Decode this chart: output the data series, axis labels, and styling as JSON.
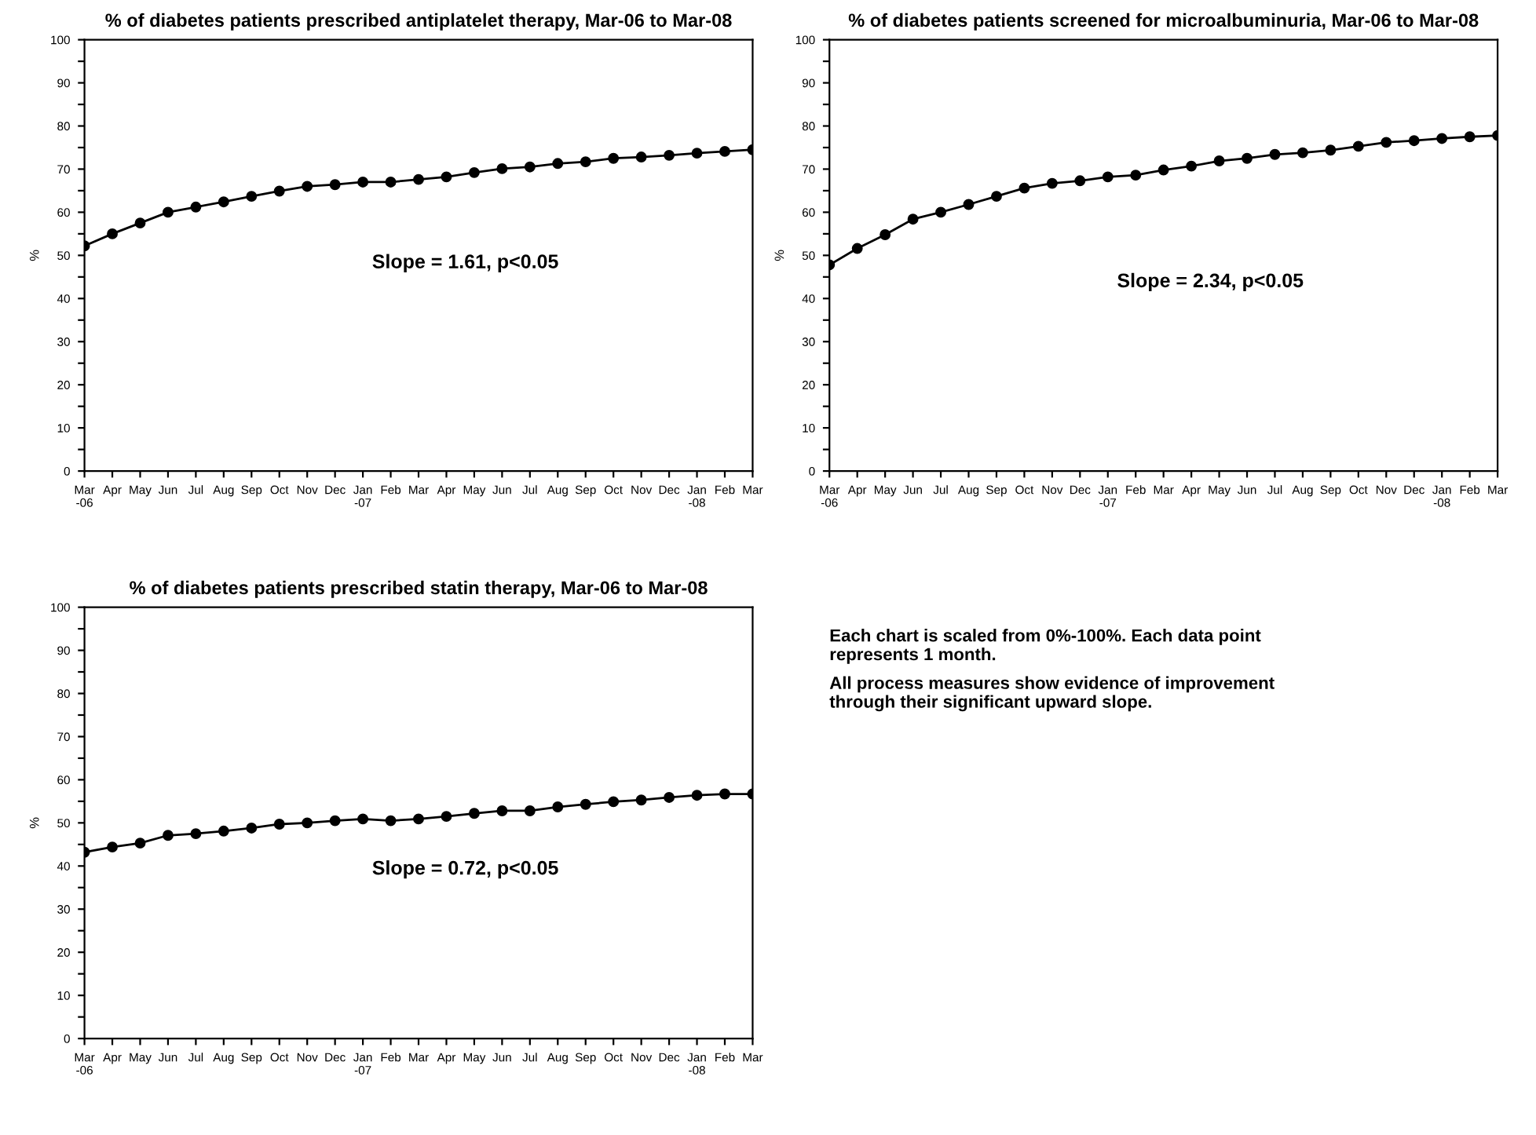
{
  "chart_data": [
    {
      "type": "line",
      "title": "% of diabetes patients prescribed antiplatelet therapy, Mar-06 to Mar-08",
      "ylabel": "%",
      "categories": [
        "Mar\n-06",
        "Apr",
        "May",
        "Jun",
        "Jul",
        "Aug",
        "Sep",
        "Oct",
        "Nov",
        "Dec",
        "Jan\n-07",
        "Feb",
        "Mar",
        "Apr",
        "May",
        "Jun",
        "Jul",
        "Aug",
        "Sep",
        "Oct",
        "Nov",
        "Dec",
        "Jan\n-08",
        "Feb",
        "Mar"
      ],
      "series": [
        {
          "color": "#000000",
          "values": [
            52.2,
            55,
            57.5,
            60,
            61.2,
            62.4,
            63.7,
            64.9,
            66,
            66.4,
            67,
            67,
            67.6,
            68.2,
            69.2,
            70.1,
            70.5,
            71.3,
            71.7,
            72.5,
            72.8,
            73.2,
            73.7,
            74.1,
            74.5
          ]
        }
      ],
      "ylim": [
        0,
        100
      ],
      "yticks": [
        0,
        {
          "value": 5,
          "label": null
        },
        10,
        {
          "value": 15,
          "label": null
        },
        20,
        {
          "value": 25,
          "label": null
        },
        30,
        {
          "value": 35,
          "label": null
        },
        40,
        {
          "value": 45,
          "label": null
        },
        50,
        {
          "value": 55,
          "label": null
        },
        60,
        {
          "value": 65,
          "label": null
        },
        70,
        {
          "value": 75,
          "label": null
        },
        80,
        {
          "value": 85,
          "label": null
        },
        90,
        {
          "value": 95,
          "label": null
        },
        100
      ],
      "marker": "circle",
      "line_style": "solid",
      "grid": false,
      "legend": false,
      "annotations": [
        "Slope = 1.61, p<0.05"
      ]
    },
    {
      "type": "line",
      "title": "% of diabetes patients screened for microalbuminuria, Mar-06 to Mar-08",
      "ylabel": "%",
      "categories": [
        "Mar\n-06",
        "Apr",
        "May",
        "Jun",
        "Jul",
        "Aug",
        "Sep",
        "Oct",
        "Nov",
        "Dec",
        "Jan\n-07",
        "Feb",
        "Mar",
        "Apr",
        "May",
        "Jun",
        "Jul",
        "Aug",
        "Sep",
        "Oct",
        "Nov",
        "Dec",
        "Jan\n-08",
        "Feb",
        "Mar"
      ],
      "series": [
        {
          "color": "#000000",
          "values": [
            47.8,
            51.6,
            54.8,
            58.4,
            60,
            61.8,
            63.7,
            65.6,
            66.7,
            67.3,
            68.2,
            68.6,
            69.8,
            70.7,
            71.9,
            72.5,
            73.4,
            73.8,
            74.4,
            75.3,
            76.2,
            76.6,
            77.1,
            77.5,
            77.8
          ]
        }
      ],
      "ylim": [
        0,
        100
      ],
      "yticks": [
        0,
        {
          "value": 5,
          "label": null
        },
        10,
        {
          "value": 15,
          "label": null
        },
        20,
        {
          "value": 25,
          "label": null
        },
        30,
        {
          "value": 35,
          "label": null
        },
        40,
        {
          "value": 45,
          "label": null
        },
        50,
        {
          "value": 55,
          "label": null
        },
        60,
        {
          "value": 65,
          "label": null
        },
        70,
        {
          "value": 75,
          "label": null
        },
        80,
        {
          "value": 85,
          "label": null
        },
        90,
        {
          "value": 95,
          "label": null
        },
        100
      ],
      "marker": "circle",
      "line_style": "solid",
      "grid": false,
      "legend": false,
      "annotations": [
        "Slope = 2.34, p<0.05"
      ]
    },
    {
      "type": "line",
      "title": "% of diabetes patients prescribed statin therapy, Mar-06 to Mar-08",
      "ylabel": "%",
      "categories": [
        "Mar\n-06",
        "Apr",
        "May",
        "Jun",
        "Jul",
        "Aug",
        "Sep",
        "Oct",
        "Nov",
        "Dec",
        "Jan\n-07",
        "Feb",
        "Mar",
        "Apr",
        "May",
        "Jun",
        "Jul",
        "Aug",
        "Sep",
        "Oct",
        "Nov",
        "Dec",
        "Jan\n-08",
        "Feb",
        "Mar"
      ],
      "series": [
        {
          "color": "#000000",
          "values": [
            43.2,
            44.4,
            45.3,
            47.1,
            47.5,
            48.1,
            48.8,
            49.7,
            50,
            50.5,
            50.9,
            50.5,
            50.9,
            51.5,
            52.2,
            52.8,
            52.8,
            53.7,
            54.3,
            54.9,
            55.3,
            55.9,
            56.4,
            56.7,
            56.7
          ]
        }
      ],
      "ylim": [
        0,
        100
      ],
      "yticks": [
        0,
        {
          "value": 5,
          "label": null
        },
        10,
        {
          "value": 15,
          "label": null
        },
        20,
        {
          "value": 25,
          "label": null
        },
        30,
        {
          "value": 35,
          "label": null
        },
        40,
        {
          "value": 45,
          "label": null
        },
        50,
        {
          "value": 55,
          "label": null
        },
        60,
        {
          "value": 65,
          "label": null
        },
        70,
        {
          "value": 75,
          "label": null
        },
        80,
        {
          "value": 85,
          "label": null
        },
        90,
        {
          "value": 95,
          "label": null
        },
        100
      ],
      "marker": "circle",
      "line_style": "solid",
      "grid": false,
      "legend": false,
      "annotations": [
        "Slope = 0.72, p<0.05"
      ]
    },
    {
      "type": "other",
      "annotations": [
        "Each chart is scaled from 0%-100%. Each data point\nrepresents 1 month.",
        "All process measures show evidence of improvement\nthrough their significant upward slope."
      ]
    }
  ]
}
